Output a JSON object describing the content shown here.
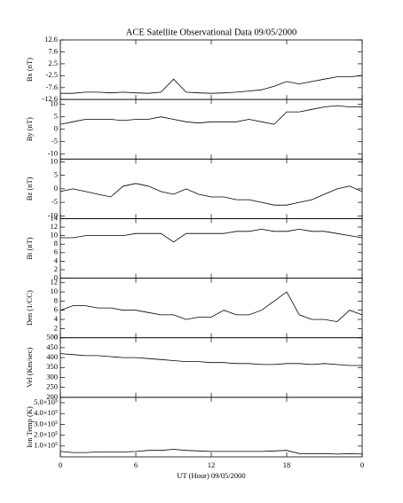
{
  "chart_data": [
    {
      "type": "line",
      "title": "ACE Satellite Observational Data   09/05/2000",
      "ylabel": "Bx (nT)",
      "color": "#000000",
      "x": [
        0,
        1,
        2,
        3,
        4,
        5,
        6,
        7,
        8,
        9,
        10,
        11,
        12,
        13,
        14,
        15,
        16,
        17,
        18,
        19,
        20,
        21,
        22,
        23,
        24
      ],
      "values": [
        -10,
        -10,
        -9.5,
        -9.5,
        -9.8,
        -9.5,
        -9.8,
        -10,
        -9.5,
        -4,
        -9.5,
        -9.8,
        -10,
        -9.8,
        -9.5,
        -9,
        -8.5,
        -7,
        -5,
        -6,
        -5,
        -4,
        -3,
        -3,
        -2.5
      ],
      "ylim": [
        -12.6,
        12.6
      ],
      "yticks": [
        -12.6,
        -7.6,
        -2.5,
        2.5,
        7.6,
        12.6
      ]
    },
    {
      "type": "line",
      "ylabel": "By (nT)",
      "color": "#000000",
      "x": [
        0,
        1,
        2,
        3,
        4,
        5,
        6,
        7,
        8,
        9,
        10,
        11,
        12,
        13,
        14,
        15,
        16,
        17,
        18,
        19,
        20,
        21,
        22,
        23,
        24
      ],
      "values": [
        2,
        3,
        4,
        4,
        4,
        3.5,
        4,
        4,
        5,
        4,
        3,
        2.5,
        3,
        3,
        3,
        4,
        3,
        2,
        7,
        7,
        8,
        9,
        9.5,
        9,
        9
      ],
      "ylim": [
        -12,
        12
      ],
      "yticks": [
        -10,
        -5,
        0,
        5,
        10
      ]
    },
    {
      "type": "line",
      "ylabel": "Bz (nT)",
      "color": "#000000",
      "x": [
        0,
        1,
        2,
        3,
        4,
        5,
        6,
        7,
        8,
        9,
        10,
        11,
        12,
        13,
        14,
        15,
        16,
        17,
        18,
        19,
        20,
        21,
        22,
        23,
        24
      ],
      "values": [
        -1,
        0,
        -1,
        -2,
        -3,
        1,
        2,
        1,
        -1,
        -2,
        0,
        -2,
        -3,
        -3,
        -4,
        -4,
        -5,
        -6,
        -6,
        -5,
        -4,
        -2,
        0,
        1,
        -1
      ],
      "ylim": [
        -11,
        11
      ],
      "yticks": [
        -10,
        -5,
        0,
        5,
        10
      ]
    },
    {
      "type": "line",
      "ylabel": "Bt (nT)",
      "color": "#000000",
      "x": [
        0,
        1,
        2,
        3,
        4,
        5,
        6,
        7,
        8,
        9,
        10,
        11,
        12,
        13,
        14,
        15,
        16,
        17,
        18,
        19,
        20,
        21,
        22,
        23,
        24
      ],
      "values": [
        9.5,
        9.5,
        10,
        10,
        10,
        10,
        10.5,
        10.5,
        10.5,
        8.5,
        10.5,
        10.5,
        10.5,
        10.5,
        11,
        11,
        11.5,
        11,
        11,
        11.5,
        11,
        11,
        10.5,
        10,
        9.5
      ],
      "ylim": [
        0,
        14
      ],
      "yticks": [
        0,
        2,
        4,
        6,
        8,
        10,
        12,
        14
      ]
    },
    {
      "type": "line",
      "ylabel": "Den (1/CC)",
      "color": "#000000",
      "x": [
        0,
        1,
        2,
        3,
        4,
        5,
        6,
        7,
        8,
        9,
        10,
        11,
        12,
        13,
        14,
        15,
        16,
        17,
        18,
        19,
        20,
        21,
        22,
        23,
        24
      ],
      "values": [
        6,
        7,
        7,
        6.5,
        6.5,
        6,
        6,
        5.5,
        5,
        5,
        4,
        4.5,
        4.5,
        6,
        5,
        5,
        6,
        8,
        10,
        5,
        4,
        4,
        3.5,
        6,
        5
      ],
      "ylim": [
        0,
        13
      ],
      "yticks": [
        0,
        2,
        4,
        6,
        8,
        10,
        12
      ]
    },
    {
      "type": "line",
      "ylabel": "Vel (Km/sec)",
      "color": "#000000",
      "x": [
        0,
        1,
        2,
        3,
        4,
        5,
        6,
        7,
        8,
        9,
        10,
        11,
        12,
        13,
        14,
        15,
        16,
        17,
        18,
        19,
        20,
        21,
        22,
        23,
        24
      ],
      "values": [
        420,
        415,
        410,
        410,
        405,
        400,
        400,
        395,
        390,
        385,
        380,
        380,
        375,
        375,
        370,
        370,
        365,
        365,
        370,
        370,
        365,
        370,
        365,
        360,
        360
      ],
      "ylim": [
        200,
        500
      ],
      "yticks": [
        200,
        250,
        300,
        350,
        400,
        450,
        500
      ]
    },
    {
      "type": "line",
      "ylabel": "Ion Temp (K)",
      "xlabel": "UT (Hour)  09/05/2000",
      "color": "#000000",
      "x": [
        0,
        1,
        2,
        3,
        4,
        5,
        6,
        7,
        8,
        9,
        10,
        11,
        12,
        13,
        14,
        15,
        16,
        17,
        18,
        19,
        20,
        21,
        22,
        23,
        24
      ],
      "values": [
        50000,
        40000,
        40000,
        45000,
        45000,
        45000,
        50000,
        60000,
        60000,
        70000,
        60000,
        55000,
        50000,
        50000,
        50000,
        50000,
        50000,
        55000,
        60000,
        30000,
        30000,
        30000,
        25000,
        30000,
        25000
      ],
      "ylim": [
        0,
        550000
      ],
      "yticks": [
        {
          "value": 100000,
          "label": "1.0×10⁵"
        },
        {
          "value": 200000,
          "label": "2.0×10⁵"
        },
        {
          "value": 300000,
          "label": "3.0×10⁵"
        },
        {
          "value": 400000,
          "label": "4.0×10⁵"
        },
        {
          "value": 500000,
          "label": "5.0×10⁵"
        }
      ],
      "xlim": [
        0,
        24
      ],
      "xticks": [
        0,
        6,
        12,
        18,
        {
          "value": 24,
          "label": "0"
        }
      ]
    }
  ]
}
